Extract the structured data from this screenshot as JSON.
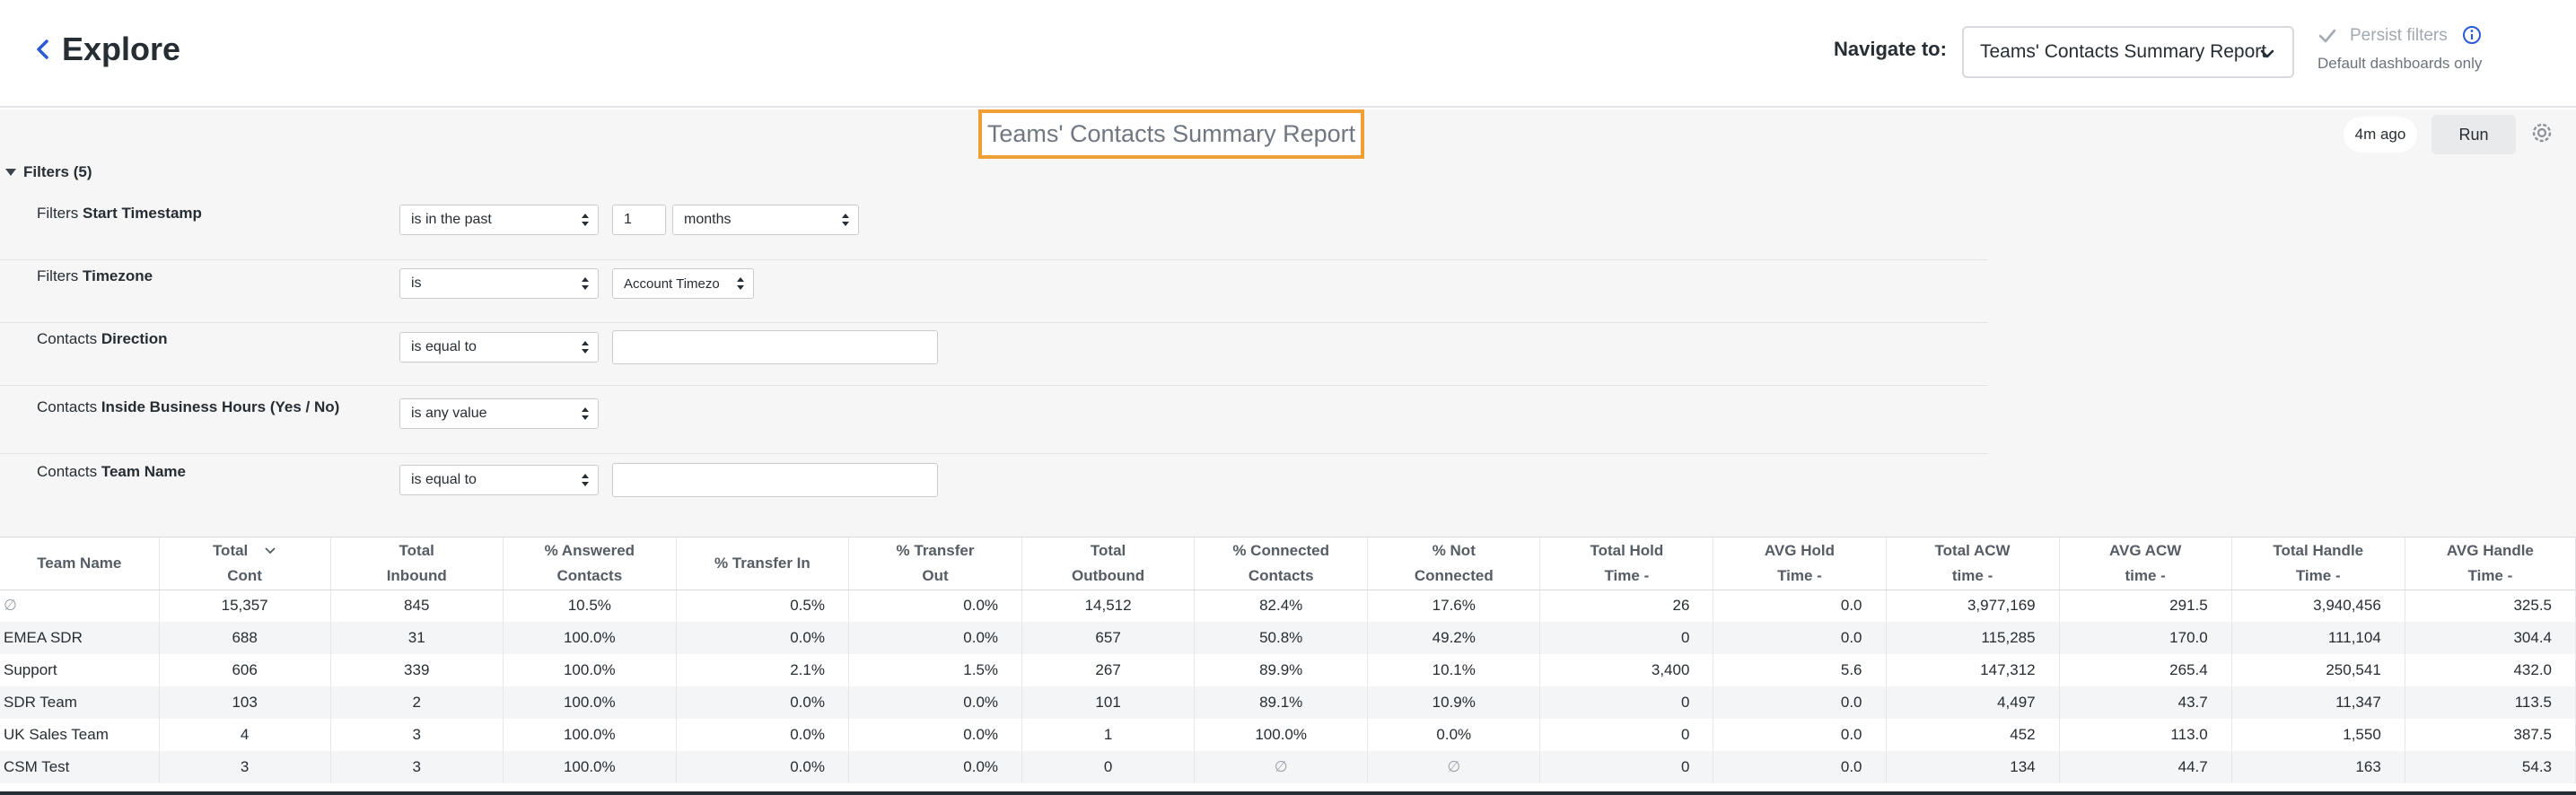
{
  "header": {
    "title": "Explore",
    "navigate_label": "Navigate to:",
    "navigate_value": "Teams' Contacts Summary Report",
    "persist_label": "Persist filters",
    "persist_sub": "Default dashboards only"
  },
  "report": {
    "title": "Teams' Contacts Summary Report",
    "last_run": "4m ago",
    "run_label": "Run",
    "filters_toggle": "Filters (5)"
  },
  "filters": [
    {
      "prefix": "Filters",
      "field": "Start Timestamp",
      "op": "is in the past",
      "value": "1",
      "unit": "months"
    },
    {
      "prefix": "Filters",
      "field": "Timezone",
      "op": "is",
      "value": "Account Timezo"
    },
    {
      "prefix": "Contacts",
      "field": "Direction",
      "op": "is equal to",
      "value": ""
    },
    {
      "prefix": "Contacts",
      "field": "Inside Business Hours (Yes / No)",
      "op": "is any value"
    },
    {
      "prefix": "Contacts",
      "field": "Team Name",
      "op": "is equal to",
      "value": ""
    }
  ],
  "table": {
    "columns": [
      {
        "l1": "Team Name",
        "l2": ""
      },
      {
        "l1": "Total",
        "l2": "Cont"
      },
      {
        "l1": "Total",
        "l2": "Inbound"
      },
      {
        "l1": "% Answered",
        "l2": "Contacts"
      },
      {
        "l1": "% Transfer In",
        "l2": ""
      },
      {
        "l1": "% Transfer",
        "l2": "Out"
      },
      {
        "l1": "Total",
        "l2": "Outbound"
      },
      {
        "l1": "% Connected",
        "l2": "Contacts"
      },
      {
        "l1": "% Not",
        "l2": "Connected"
      },
      {
        "l1": "Total Hold",
        "l2": "Time -"
      },
      {
        "l1": "AVG Hold",
        "l2": "Time -"
      },
      {
        "l1": "Total ACW",
        "l2": "time -"
      },
      {
        "l1": "AVG ACW",
        "l2": "time -"
      },
      {
        "l1": "Total Handle",
        "l2": "Time -"
      },
      {
        "l1": "AVG Handle",
        "l2": "Time -"
      }
    ],
    "rows": [
      [
        "∅",
        "15,357",
        "845",
        "10.5%",
        "0.5%",
        "0.0%",
        "14,512",
        "82.4%",
        "17.6%",
        "26",
        "0.0",
        "3,977,169",
        "291.5",
        "3,940,456",
        "325.5"
      ],
      [
        "EMEA SDR",
        "688",
        "31",
        "100.0%",
        "0.0%",
        "0.0%",
        "657",
        "50.8%",
        "49.2%",
        "0",
        "0.0",
        "115,285",
        "170.0",
        "111,104",
        "304.4"
      ],
      [
        "Support",
        "606",
        "339",
        "100.0%",
        "2.1%",
        "1.5%",
        "267",
        "89.9%",
        "10.1%",
        "3,400",
        "5.6",
        "147,312",
        "265.4",
        "250,541",
        "432.0"
      ],
      [
        "SDR Team",
        "103",
        "2",
        "100.0%",
        "0.0%",
        "0.0%",
        "101",
        "89.1%",
        "10.9%",
        "0",
        "0.0",
        "4,497",
        "43.7",
        "11,347",
        "113.5"
      ],
      [
        "UK Sales Team",
        "4",
        "3",
        "100.0%",
        "0.0%",
        "0.0%",
        "1",
        "100.0%",
        "0.0%",
        "0",
        "0.0",
        "452",
        "113.0",
        "1,550",
        "387.5"
      ],
      [
        "CSM Test",
        "3",
        "3",
        "100.0%",
        "0.0%",
        "0.0%",
        "0",
        "∅",
        "∅",
        "0",
        "0.0",
        "134",
        "44.7",
        "163",
        "54.3"
      ]
    ]
  }
}
